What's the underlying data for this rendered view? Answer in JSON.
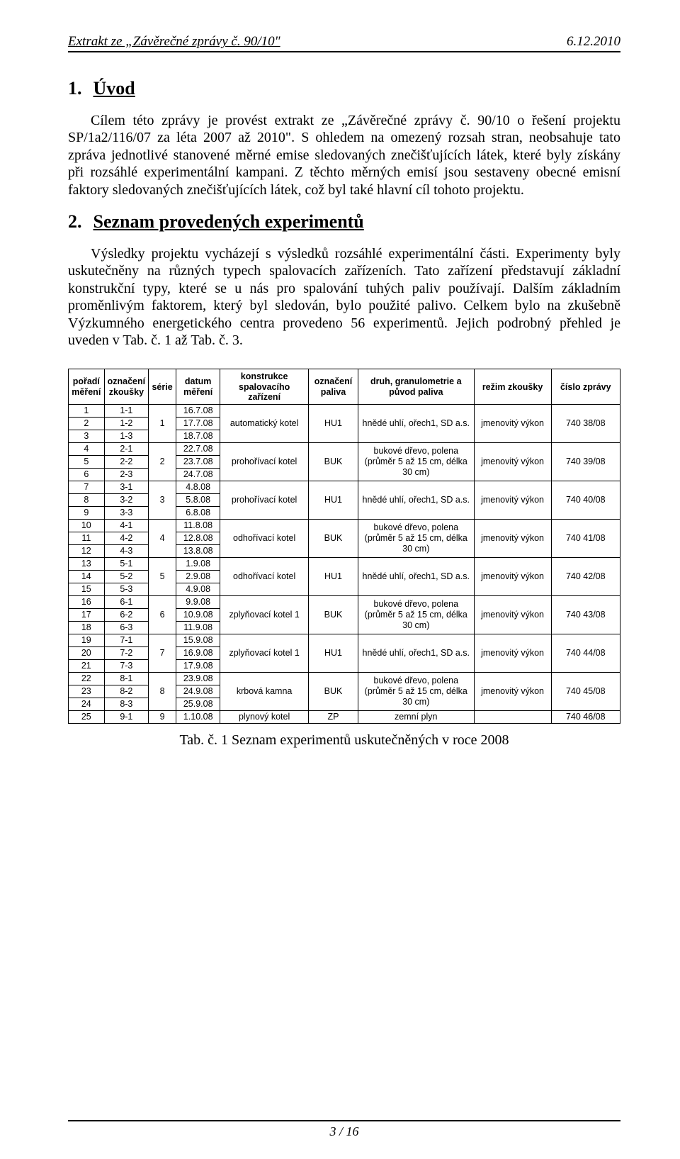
{
  "header": {
    "left": "Extrakt ze „Závěrečné zprávy č. 90/10\"",
    "right": "6.12.2010"
  },
  "section1": {
    "num": "1.",
    "title": "Úvod",
    "para1": "Cílem této zprávy je provést extrakt ze „Závěrečné zprávy č. 90/10 o řešení projektu SP/1a2/116/07 za léta 2007 až 2010\". S ohledem na omezený rozsah stran, neobsahuje tato zpráva jednotlivé stanovené měrné emise sledovaných znečišťujících látek, které byly získány při rozsáhlé experimentální kampani. Z těchto měrných emisí jsou sestaveny obecné emisní faktory sledovaných znečišťujících látek, což byl také hlavní cíl tohoto projektu."
  },
  "section2": {
    "num": "2.",
    "title": "Seznam provedených experimentů",
    "para1": "Výsledky projektu vycházejí s výsledků rozsáhlé experimentální části. Experimenty byly uskutečněny na různých typech spalovacích zařízeních. Tato zařízení představují základní konstrukční typy, které se u nás pro spalování tuhých paliv používají. Dalším základním proměnlivým faktorem, který byl sledován, bylo použité palivo. Celkem bylo na zkušebně Výzkumného energetického centra provedeno 56 experimentů. Jejich podrobný přehled je uveden v Tab. č. 1 až Tab. č. 3."
  },
  "table": {
    "columns": [
      "pořadí měření",
      "označení zkoušky",
      "série",
      "datum měření",
      "konstrukce spalovacího zařízení",
      "označení paliva",
      "druh, granulometrie a původ paliva",
      "režim zkoušky",
      "číslo zprávy"
    ],
    "groups": [
      {
        "serie": "1",
        "zarizeni": "automatický kotel",
        "palivo_kod": "HU1",
        "palivo": "hnědé uhlí, ořech1, SD a.s.",
        "rezim": "jmenovitý výkon",
        "zprava": "740 38/08",
        "rows": [
          {
            "poradi": "1",
            "ozn": "1-1",
            "datum": "16.7.08"
          },
          {
            "poradi": "2",
            "ozn": "1-2",
            "datum": "17.7.08"
          },
          {
            "poradi": "3",
            "ozn": "1-3",
            "datum": "18.7.08"
          }
        ]
      },
      {
        "serie": "2",
        "zarizeni": "prohořívací kotel",
        "palivo_kod": "BUK",
        "palivo": "bukové dřevo, polena (průměr 5 až 15 cm, délka 30 cm)",
        "rezim": "jmenovitý výkon",
        "zprava": "740 39/08",
        "rows": [
          {
            "poradi": "4",
            "ozn": "2-1",
            "datum": "22.7.08"
          },
          {
            "poradi": "5",
            "ozn": "2-2",
            "datum": "23.7.08"
          },
          {
            "poradi": "6",
            "ozn": "2-3",
            "datum": "24.7.08"
          }
        ]
      },
      {
        "serie": "3",
        "zarizeni": "prohořívací kotel",
        "palivo_kod": "HU1",
        "palivo": "hnědé uhlí, ořech1, SD a.s.",
        "rezim": "jmenovitý výkon",
        "zprava": "740 40/08",
        "rows": [
          {
            "poradi": "7",
            "ozn": "3-1",
            "datum": "4.8.08"
          },
          {
            "poradi": "8",
            "ozn": "3-2",
            "datum": "5.8.08"
          },
          {
            "poradi": "9",
            "ozn": "3-3",
            "datum": "6.8.08"
          }
        ]
      },
      {
        "serie": "4",
        "zarizeni": "odhořívací kotel",
        "palivo_kod": "BUK",
        "palivo": "bukové dřevo, polena (průměr 5 až 15 cm, délka 30 cm)",
        "rezim": "jmenovitý výkon",
        "zprava": "740 41/08",
        "rows": [
          {
            "poradi": "10",
            "ozn": "4-1",
            "datum": "11.8.08"
          },
          {
            "poradi": "11",
            "ozn": "4-2",
            "datum": "12.8.08"
          },
          {
            "poradi": "12",
            "ozn": "4-3",
            "datum": "13.8.08"
          }
        ]
      },
      {
        "serie": "5",
        "zarizeni": "odhořívací kotel",
        "palivo_kod": "HU1",
        "palivo": "hnědé uhlí, ořech1, SD a.s.",
        "rezim": "jmenovitý výkon",
        "zprava": "740 42/08",
        "rows": [
          {
            "poradi": "13",
            "ozn": "5-1",
            "datum": "1.9.08"
          },
          {
            "poradi": "14",
            "ozn": "5-2",
            "datum": "2.9.08"
          },
          {
            "poradi": "15",
            "ozn": "5-3",
            "datum": "4.9.08"
          }
        ]
      },
      {
        "serie": "6",
        "zarizeni": "zplyňovací kotel 1",
        "palivo_kod": "BUK",
        "palivo": "bukové dřevo, polena (průměr 5 až 15 cm, délka 30 cm)",
        "rezim": "jmenovitý výkon",
        "zprava": "740 43/08",
        "rows": [
          {
            "poradi": "16",
            "ozn": "6-1",
            "datum": "9.9.08"
          },
          {
            "poradi": "17",
            "ozn": "6-2",
            "datum": "10.9.08"
          },
          {
            "poradi": "18",
            "ozn": "6-3",
            "datum": "11.9.08"
          }
        ]
      },
      {
        "serie": "7",
        "zarizeni": "zplyňovací kotel 1",
        "palivo_kod": "HU1",
        "palivo": "hnědé uhlí, ořech1, SD a.s.",
        "rezim": "jmenovitý výkon",
        "zprava": "740 44/08",
        "rows": [
          {
            "poradi": "19",
            "ozn": "7-1",
            "datum": "15.9.08"
          },
          {
            "poradi": "20",
            "ozn": "7-2",
            "datum": "16.9.08"
          },
          {
            "poradi": "21",
            "ozn": "7-3",
            "datum": "17.9.08"
          }
        ]
      },
      {
        "serie": "8",
        "zarizeni": "krbová kamna",
        "palivo_kod": "BUK",
        "palivo": "bukové dřevo, polena (průměr 5 až 15 cm, délka 30 cm)",
        "rezim": "jmenovitý výkon",
        "zprava": "740 45/08",
        "rows": [
          {
            "poradi": "22",
            "ozn": "8-1",
            "datum": "23.9.08"
          },
          {
            "poradi": "23",
            "ozn": "8-2",
            "datum": "24.9.08"
          },
          {
            "poradi": "24",
            "ozn": "8-3",
            "datum": "25.9.08"
          }
        ]
      },
      {
        "serie": "9",
        "zarizeni": "plynový kotel",
        "palivo_kod": "ZP",
        "palivo": "zemní plyn",
        "rezim": "",
        "zprava": "740 46/08",
        "rows": [
          {
            "poradi": "25",
            "ozn": "9-1",
            "datum": "1.10.08"
          }
        ]
      }
    ],
    "caption": "Tab. č. 1   Seznam experimentů uskutečněných v roce 2008"
  },
  "footer": {
    "page": "3 / 16"
  }
}
